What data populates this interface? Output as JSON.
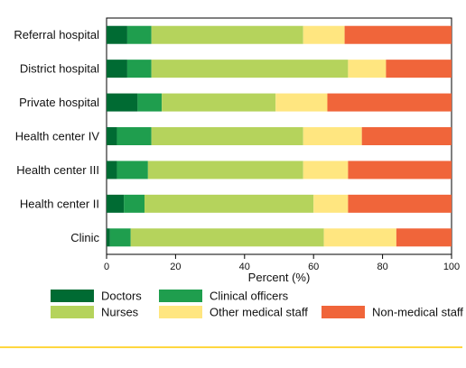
{
  "chart_data": {
    "type": "bar",
    "orientation": "horizontal",
    "stacked": true,
    "categories": [
      "Referral hospital",
      "District hospital",
      "Private hospital",
      "Health center IV",
      "Health center III",
      "Health center II",
      "Clinic"
    ],
    "series": [
      {
        "name": "Doctors",
        "color": "#006B33",
        "values": [
          6,
          6,
          9,
          3,
          3,
          5,
          1
        ]
      },
      {
        "name": "Clinical officers",
        "color": "#1F9E4E",
        "values": [
          7,
          7,
          7,
          10,
          9,
          6,
          6
        ]
      },
      {
        "name": "Nurses",
        "color": "#B5D35C",
        "values": [
          44,
          57,
          33,
          44,
          45,
          49,
          56
        ]
      },
      {
        "name": "Other medical staff",
        "color": "#FFE680",
        "values": [
          12,
          11,
          15,
          17,
          13,
          10,
          21
        ]
      },
      {
        "name": "Non-medical staff",
        "color": "#F0653A",
        "values": [
          31,
          19,
          36,
          26,
          30,
          30,
          16
        ]
      }
    ],
    "xlabel": "Percent (%)",
    "ylabel": "",
    "xlim": [
      0,
      100
    ],
    "xticks": [
      "0",
      "20",
      "40",
      "60",
      "80",
      "100"
    ],
    "grid": false,
    "legend_position": "bottom"
  }
}
